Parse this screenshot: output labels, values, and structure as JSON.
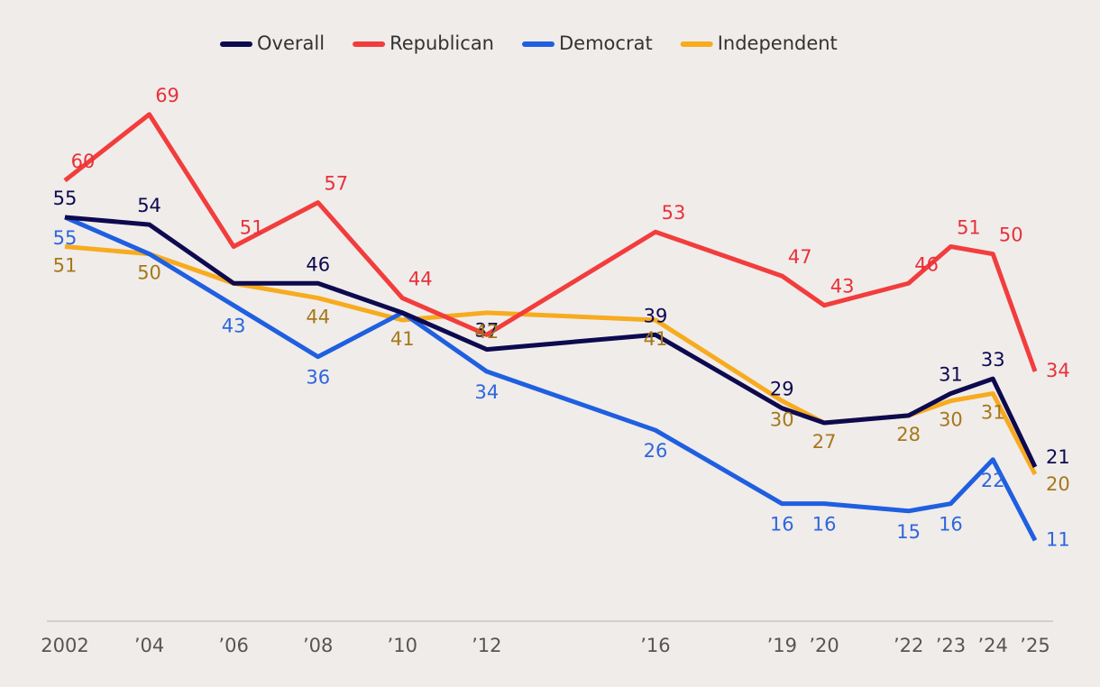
{
  "chart_data": {
    "type": "line",
    "x": [
      2002,
      2004,
      2006,
      2008,
      2010,
      2012,
      2016,
      2019,
      2020,
      2022,
      2023,
      2024,
      2025
    ],
    "xlim": [
      2002,
      2025
    ],
    "xticks": [
      2002,
      {
        "value": 2004,
        "label": "’04"
      },
      {
        "value": 2006,
        "label": "’06"
      },
      {
        "value": 2008,
        "label": "’08"
      },
      {
        "value": 2010,
        "label": "’10"
      },
      {
        "value": 2012,
        "label": "’12"
      },
      {
        "value": 2016,
        "label": "’16"
      },
      {
        "value": 2019,
        "label": "’19"
      },
      {
        "value": 2020,
        "label": "’20"
      },
      {
        "value": 2022,
        "label": "’22"
      },
      {
        "value": 2023,
        "label": "’23"
      },
      {
        "value": 2024,
        "label": "’24"
      },
      {
        "value": 2025,
        "label": "’25"
      }
    ],
    "ylim": [
      0,
      75
    ],
    "series": [
      {
        "name": "Overall",
        "color": "#0d0a4f",
        "label_color": "#0d0a4f",
        "values": [
          55,
          54,
          46,
          46,
          42,
          37,
          39,
          29,
          27,
          28,
          31,
          33,
          21
        ],
        "value_labels": [
          "55",
          "54",
          null,
          "46",
          null,
          "37",
          "39",
          "29",
          null,
          null,
          "31",
          "33",
          "21"
        ]
      },
      {
        "name": "Republican",
        "color": "#f23d3d",
        "label_color": "#e8313a",
        "values": [
          60,
          69,
          51,
          57,
          44,
          39,
          53,
          47,
          43,
          46,
          51,
          50,
          34
        ],
        "value_labels": [
          "60",
          "69",
          "51",
          "57",
          "44",
          null,
          "53",
          "47",
          "43",
          "46",
          "51",
          "50",
          "34"
        ]
      },
      {
        "name": "Democrat",
        "color": "#1f5fe0",
        "label_color": "#2e66dc",
        "values": [
          55,
          50,
          43,
          36,
          42,
          34,
          26,
          16,
          16,
          15,
          16,
          22,
          11
        ],
        "value_labels": [
          "55",
          null,
          "43",
          "36",
          null,
          "34",
          "26",
          "16",
          "16",
          "15",
          "16",
          "22",
          "11"
        ]
      },
      {
        "name": "Independent",
        "color": "#f7ab1e",
        "label_color": "#a6781a",
        "values": [
          51,
          50,
          46,
          44,
          41,
          42,
          41,
          30,
          27,
          28,
          30,
          31,
          20
        ],
        "value_labels": [
          "51",
          "50",
          null,
          "44",
          "41",
          "42",
          "41",
          "30",
          "27",
          "28",
          "30",
          "31",
          "20"
        ]
      }
    ],
    "legend": "top"
  }
}
